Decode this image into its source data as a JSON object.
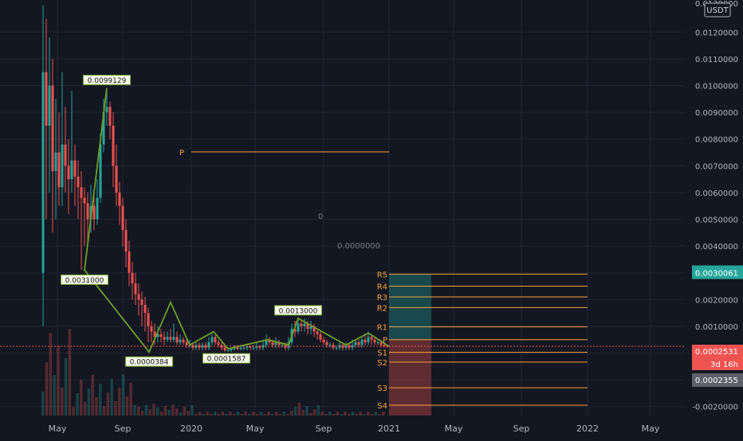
{
  "chart_data": {
    "type": "candlestick",
    "currency": "USDT",
    "y_axis_ticks": [
      "0.0120000",
      "0.0110000",
      "0.0100000",
      "0.0090000",
      "0.0080000",
      "0.0070000",
      "0.0060000",
      "0.0050000",
      "0.0040000",
      "0.0030000",
      "0.0020000",
      "0.0010000",
      "0.0000000",
      "-0.0010000",
      "-0.0020000"
    ],
    "top_tick_partial": "0.0130000",
    "x_axis_ticks": [
      "May",
      "Sep",
      "2020",
      "May",
      "Sep",
      "2021",
      "May",
      "Sep",
      "2022",
      "May"
    ],
    "price_labels": {
      "current_price": "0.0002531",
      "countdown": "3d 16h",
      "lower_price": "0.0002355",
      "green_marker": "0.0030061"
    },
    "zigzag_labels": [
      "0.0099129",
      "0.0031000",
      "0.0000384",
      "0.0001587",
      "0.0013000"
    ],
    "pivot_lines_labels": [
      "R5",
      "R4",
      "R3",
      "R2",
      "R1",
      "P",
      "S1",
      "S2",
      "S3",
      "S4"
    ],
    "prior_pivot_label": "P",
    "center_labels": [
      "0",
      "0.0000000"
    ],
    "colors": {
      "background": "#131722",
      "grid": "#1f2433",
      "axis_text": "#b2b5be",
      "up": "#26a69a",
      "down": "#ef5350",
      "zigzag": "#6e9f27",
      "pivot": "#f7a23b",
      "current_line": "#ef5350",
      "green_marker": "#26a69a"
    },
    "y_range": [
      -0.002,
      0.013
    ],
    "zigzag_values": [
      0.0099129,
      0.0031,
      3.84e-05,
      0.0019,
      0.0003,
      0.0008,
      0.0001587,
      0.0005,
      0.0003,
      0.0013,
      0.0003,
      0.00075,
      0.00025
    ],
    "pivot_levels": {
      "R5": 0.00295,
      "R4": 0.0025,
      "R3": 0.0021,
      "R2": 0.0017,
      "R1": 0.00098,
      "P": 0.0005,
      "S1": 2.5e-05,
      "S2": -0.00034,
      "S3": -0.0013,
      "S4": -0.00195
    },
    "prior_pivot": 0.00752
  }
}
